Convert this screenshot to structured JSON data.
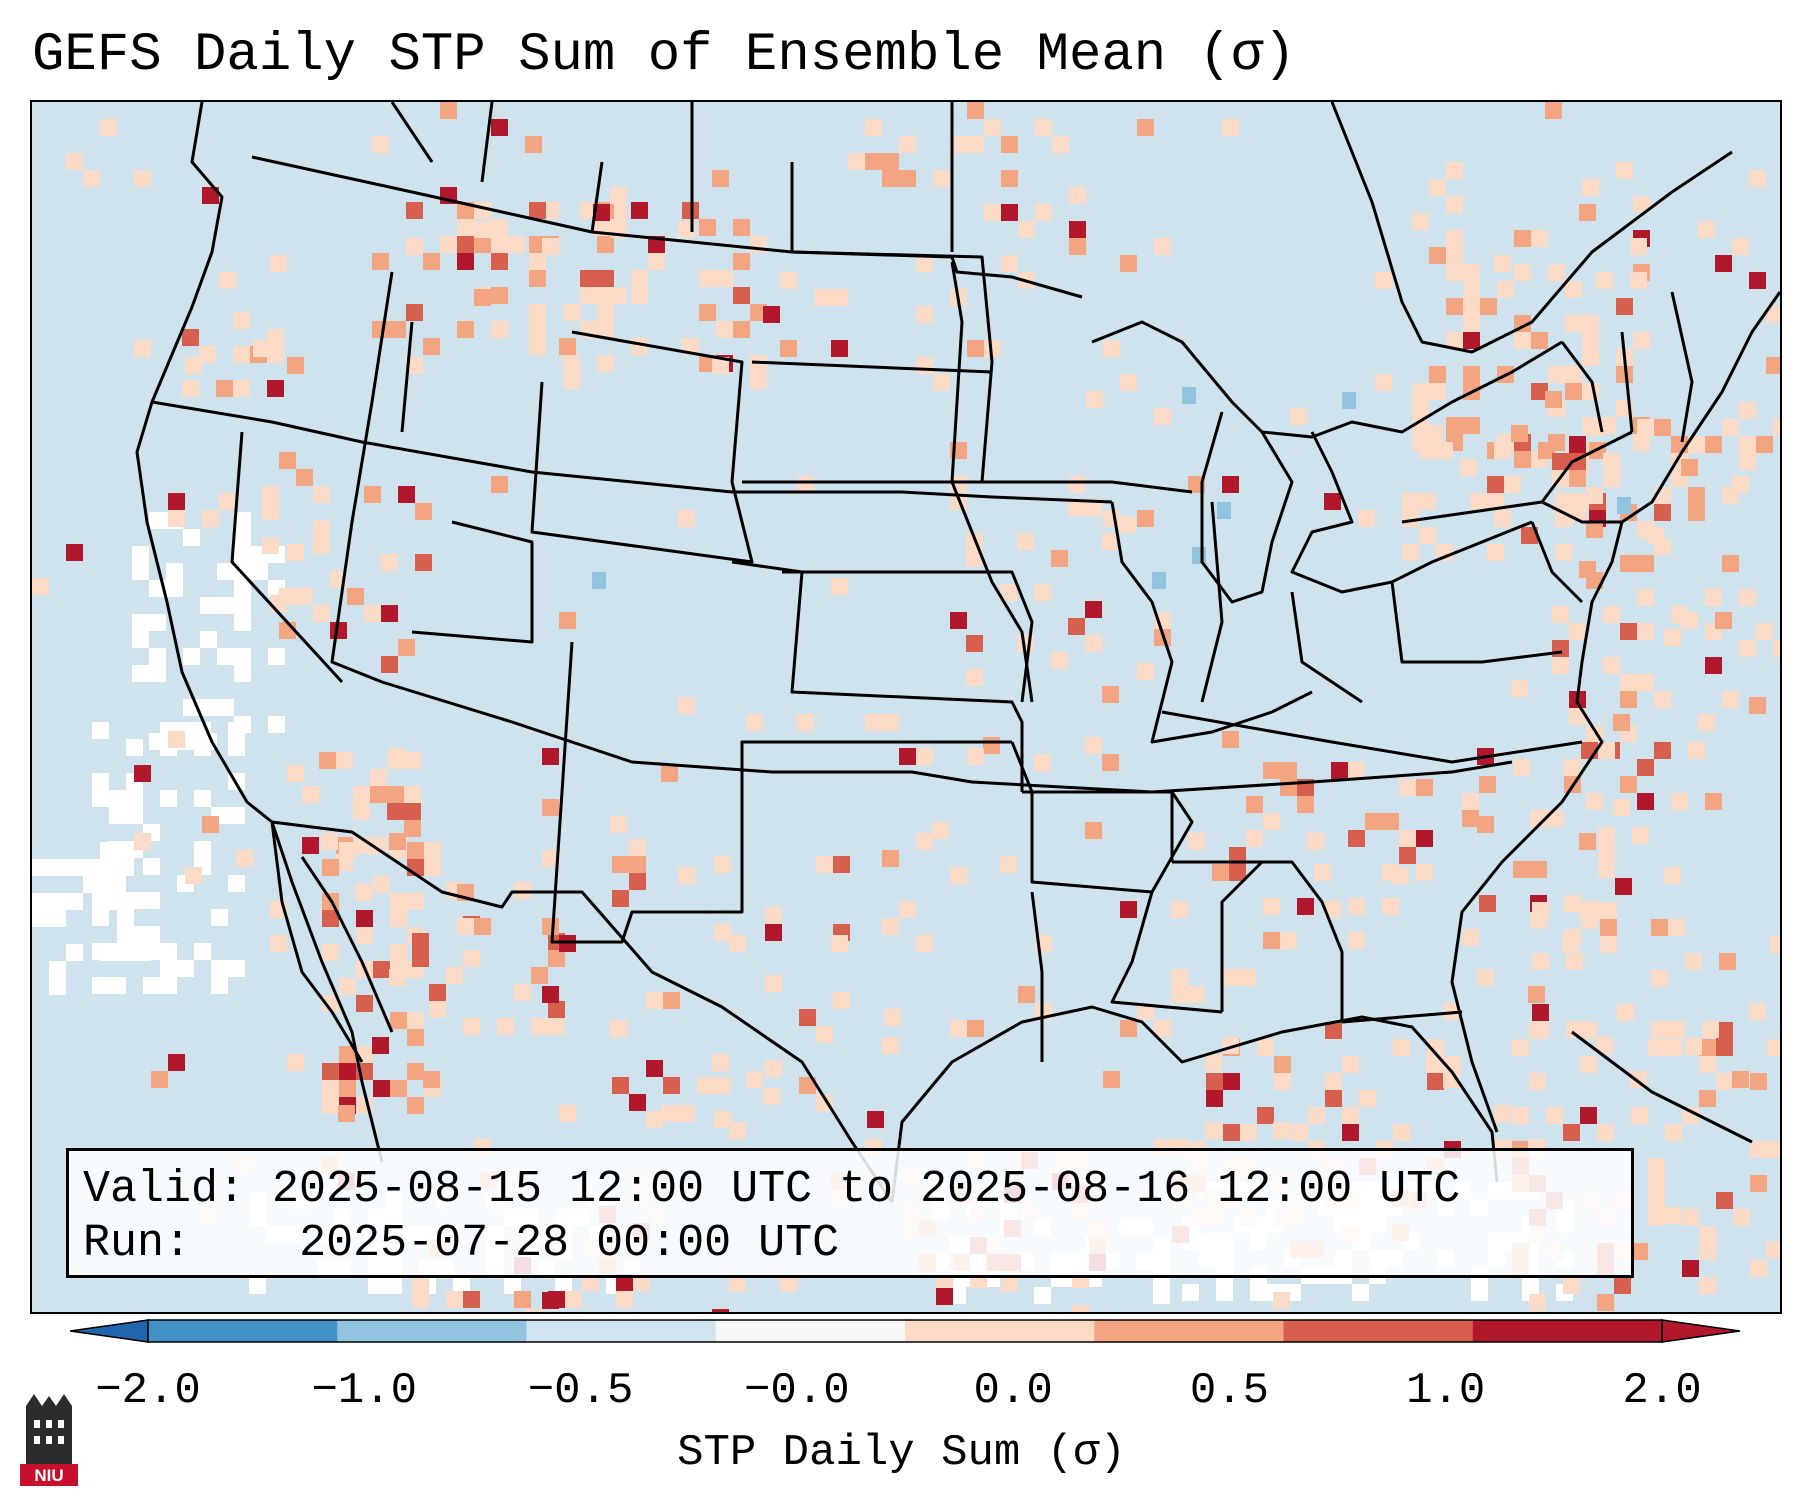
{
  "title": "GEFS Daily STP Sum of Ensemble Mean (σ)",
  "info": {
    "valid_label": "Valid:",
    "valid_value": "2025-08-15 12:00 UTC to 2025-08-16 12:00 UTC",
    "run_label": "Run:",
    "run_value": "2025-07-28 00:00 UTC"
  },
  "colorbar": {
    "label": "STP Daily Sum (σ)",
    "ticks": [
      "−2.0",
      "−1.0",
      "−0.5",
      "−0.0",
      "0.0",
      "0.5",
      "1.0",
      "2.0"
    ],
    "colors": [
      "#4392c6",
      "#93c4df",
      "#d1e5f0",
      "#f7f7f7",
      "#fcdbc6",
      "#f3a481",
      "#d6604d",
      "#b2182b"
    ],
    "extend_min_color": "#2166ac",
    "extend_max_color": "#b2182b"
  },
  "map": {
    "background_color": "#cfe3ef",
    "neutral_color": "#ffffff",
    "field_level_colors": [
      "#fcdbc6",
      "#f3a481",
      "#d6604d",
      "#b2182b"
    ]
  },
  "logo": {
    "text": "NIU",
    "icon": "niu-logo-icon"
  }
}
